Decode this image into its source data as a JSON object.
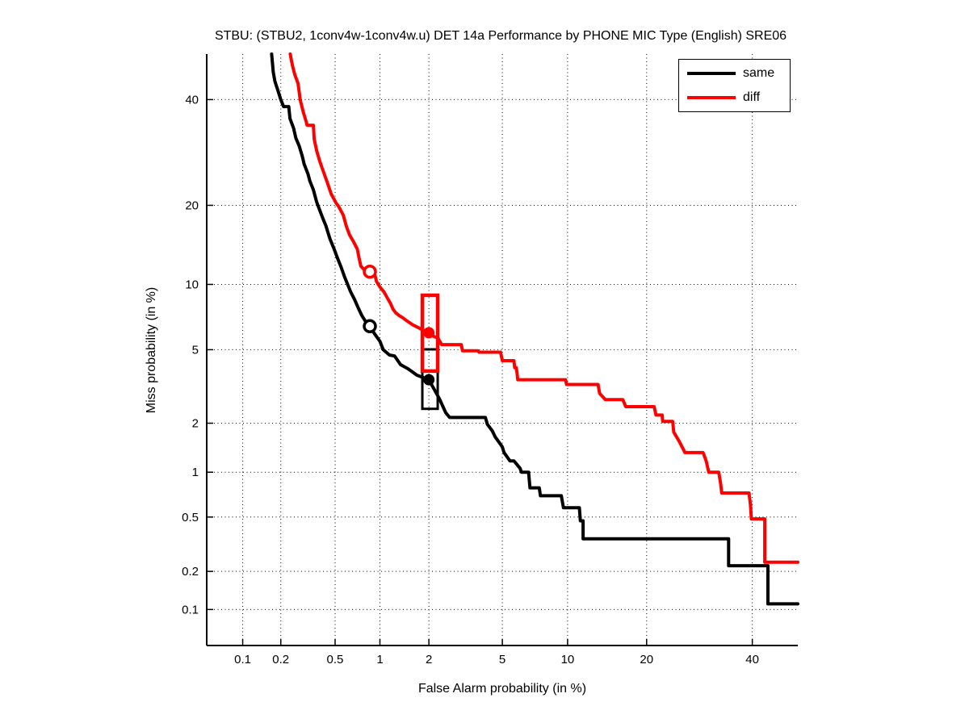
{
  "chart_data": {
    "type": "line",
    "subtype": "DET-curve-probit-scale",
    "title": "STBU: (STBU2, 1conv4w-1conv4w.u) DET 14a Performance by PHONE MIC Type (English) SRE06",
    "xlabel": "False Alarm probability (in %)",
    "ylabel": "Miss probability (in %)",
    "xlim": [
      0.05,
      50
    ],
    "ylim": [
      0.05,
      50
    ],
    "x_ticks": [
      0.1,
      0.2,
      0.5,
      1,
      2,
      5,
      10,
      20,
      40
    ],
    "x_tick_labels": [
      "0.1",
      "0.2",
      "0.5",
      "1",
      "2",
      "5",
      "10",
      "20",
      "40"
    ],
    "y_ticks": [
      40,
      20,
      10,
      5,
      2,
      1,
      0.5,
      0.2,
      0.1
    ],
    "y_tick_labels": [
      "40",
      "20",
      "10",
      "5",
      "2",
      "1",
      "0.5",
      "0.2",
      "0.1"
    ],
    "grid": "dotted",
    "legend_position": "top-right",
    "series": [
      {
        "name": "same",
        "color": "#000000",
        "points": [
          [
            0.17,
            50
          ],
          [
            0.175,
            46
          ],
          [
            0.18,
            44
          ],
          [
            0.19,
            42
          ],
          [
            0.2,
            40
          ],
          [
            0.21,
            38.5
          ],
          [
            0.23,
            38.5
          ],
          [
            0.235,
            36
          ],
          [
            0.25,
            34
          ],
          [
            0.26,
            32
          ],
          [
            0.275,
            30.5
          ],
          [
            0.29,
            28.5
          ],
          [
            0.3,
            27
          ],
          [
            0.32,
            25.2
          ],
          [
            0.33,
            24
          ],
          [
            0.35,
            22.5
          ],
          [
            0.37,
            20.5
          ],
          [
            0.385,
            19.5
          ],
          [
            0.41,
            18
          ],
          [
            0.43,
            17
          ],
          [
            0.46,
            15.2
          ],
          [
            0.49,
            14
          ],
          [
            0.52,
            12.8
          ],
          [
            0.55,
            11.8
          ],
          [
            0.58,
            10.8
          ],
          [
            0.61,
            10.0
          ],
          [
            0.64,
            9.3
          ],
          [
            0.68,
            8.6
          ],
          [
            0.72,
            7.9
          ],
          [
            0.76,
            7.3
          ],
          [
            0.8,
            6.9
          ],
          [
            0.86,
            6.5
          ],
          [
            0.92,
            6.0
          ],
          [
            1.0,
            5.5
          ],
          [
            1.05,
            5.0
          ],
          [
            1.15,
            4.7
          ],
          [
            1.24,
            4.65
          ],
          [
            1.35,
            4.2
          ],
          [
            1.5,
            4.0
          ],
          [
            1.7,
            3.7
          ],
          [
            2.0,
            3.5
          ],
          [
            2.15,
            3.1
          ],
          [
            2.3,
            2.76
          ],
          [
            2.5,
            2.3
          ],
          [
            2.63,
            2.16
          ],
          [
            4.1,
            2.16
          ],
          [
            4.2,
            1.97
          ],
          [
            4.45,
            1.8
          ],
          [
            4.6,
            1.66
          ],
          [
            4.85,
            1.52
          ],
          [
            5.0,
            1.44
          ],
          [
            5.1,
            1.33
          ],
          [
            5.45,
            1.18
          ],
          [
            5.7,
            1.18
          ],
          [
            6.1,
            1.06
          ],
          [
            6.2,
            1.0
          ],
          [
            6.7,
            1.0
          ],
          [
            6.8,
            0.79
          ],
          [
            7.5,
            0.79
          ],
          [
            7.6,
            0.7
          ],
          [
            9.4,
            0.7
          ],
          [
            9.6,
            0.58
          ],
          [
            11.2,
            0.58
          ],
          [
            11.3,
            0.47
          ],
          [
            11.6,
            0.47
          ],
          [
            11.6,
            0.35
          ],
          [
            35.0,
            0.35
          ],
          [
            35.0,
            0.221
          ],
          [
            43.4,
            0.221
          ],
          [
            43.4,
            0.111
          ],
          [
            50,
            0.111
          ]
        ],
        "open_circle_marker": [
          0.86,
          6.5
        ],
        "filled_dot_marker": [
          2.0,
          3.5
        ],
        "box": {
          "fa": [
            1.83,
            2.25
          ],
          "miss": [
            2.42,
            5.02
          ]
        }
      },
      {
        "name": "diff",
        "color": "#ff0000",
        "points": [
          [
            0.236,
            50
          ],
          [
            0.245,
            47.5
          ],
          [
            0.255,
            45.5
          ],
          [
            0.27,
            43.5
          ],
          [
            0.276,
            41.4
          ],
          [
            0.28,
            40
          ],
          [
            0.295,
            37.4
          ],
          [
            0.31,
            35.4
          ],
          [
            0.315,
            34.6
          ],
          [
            0.35,
            34.6
          ],
          [
            0.355,
            31.8
          ],
          [
            0.37,
            29.5
          ],
          [
            0.39,
            27.5
          ],
          [
            0.41,
            25.9
          ],
          [
            0.44,
            23.8
          ],
          [
            0.47,
            21.8
          ],
          [
            0.51,
            20.3
          ],
          [
            0.53,
            19.8
          ],
          [
            0.57,
            18.5
          ],
          [
            0.6,
            16.8
          ],
          [
            0.63,
            15.7
          ],
          [
            0.67,
            14.8
          ],
          [
            0.71,
            13.9
          ],
          [
            0.73,
            12.8
          ],
          [
            0.75,
            11.9
          ],
          [
            0.79,
            11.5
          ],
          [
            0.86,
            11.3
          ],
          [
            0.88,
            10.9
          ],
          [
            0.93,
            10.9
          ],
          [
            0.95,
            10.3
          ],
          [
            1.0,
            9.75
          ],
          [
            1.06,
            9.3
          ],
          [
            1.12,
            8.7
          ],
          [
            1.17,
            8.25
          ],
          [
            1.21,
            7.8
          ],
          [
            1.26,
            7.5
          ],
          [
            1.32,
            7.3
          ],
          [
            1.4,
            7.1
          ],
          [
            1.47,
            6.9
          ],
          [
            1.6,
            6.6
          ],
          [
            1.8,
            6.3
          ],
          [
            2.0,
            6.05
          ],
          [
            2.1,
            5.85
          ],
          [
            2.26,
            5.7
          ],
          [
            2.37,
            5.3
          ],
          [
            3.05,
            5.3
          ],
          [
            3.1,
            4.94
          ],
          [
            3.75,
            4.94
          ],
          [
            3.8,
            4.86
          ],
          [
            4.9,
            4.86
          ],
          [
            5.0,
            4.4
          ],
          [
            5.7,
            4.4
          ],
          [
            5.75,
            4.05
          ],
          [
            5.85,
            4.05
          ],
          [
            5.9,
            3.8
          ],
          [
            5.95,
            3.5
          ],
          [
            9.8,
            3.5
          ],
          [
            9.9,
            3.3
          ],
          [
            13.3,
            3.3
          ],
          [
            13.5,
            2.95
          ],
          [
            14.2,
            2.73
          ],
          [
            16.5,
            2.73
          ],
          [
            16.9,
            2.49
          ],
          [
            21.2,
            2.49
          ],
          [
            21.5,
            2.23
          ],
          [
            22.5,
            2.23
          ],
          [
            22.6,
            2.05
          ],
          [
            24.3,
            2.05
          ],
          [
            24.5,
            1.77
          ],
          [
            25.5,
            1.55
          ],
          [
            26.5,
            1.33
          ],
          [
            29.9,
            1.33
          ],
          [
            30.5,
            1.18
          ],
          [
            31,
            1.0
          ],
          [
            33,
            1.0
          ],
          [
            33.4,
            0.83
          ],
          [
            33.6,
            0.73
          ],
          [
            39.3,
            0.73
          ],
          [
            39.6,
            0.61
          ],
          [
            39.8,
            0.485
          ],
          [
            42.4,
            0.485
          ],
          [
            42.7,
            0.485
          ],
          [
            42.7,
            0.235
          ],
          [
            50,
            0.235
          ]
        ],
        "open_circle_marker": [
          0.86,
          11.3
        ],
        "filled_dot_marker": [
          2.0,
          6.05
        ],
        "box": {
          "fa": [
            1.83,
            2.25
          ],
          "miss": [
            3.89,
            8.98
          ]
        }
      }
    ]
  }
}
